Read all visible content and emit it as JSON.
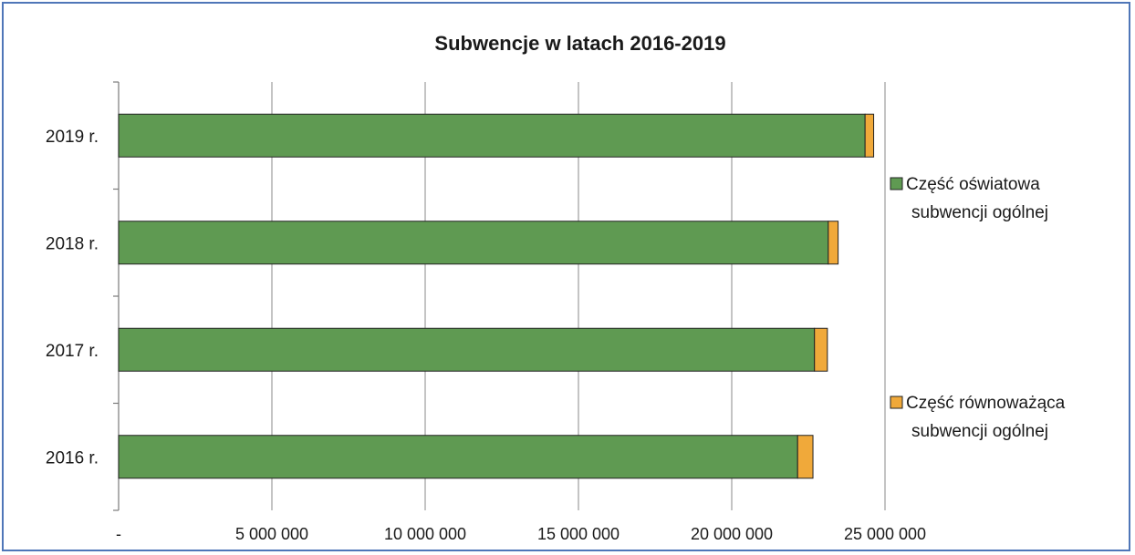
{
  "chart_data": {
    "type": "bar",
    "orientation": "horizontal",
    "stacked": true,
    "title": "Subwencje w latach 2016-2019",
    "categories": [
      "2019 r.",
      "2018 r.",
      "2017 r.",
      "2016 r."
    ],
    "series": [
      {
        "name": "Część oświatowa subwencji ogólnej",
        "legend_lines": [
          "Część oświatowa",
          "subwencji ogólnej"
        ],
        "color": "#5f9a52",
        "values": [
          24350000,
          23150000,
          22700000,
          22150000
        ]
      },
      {
        "name": "Część równoważąca subwencji ogólnej",
        "legend_lines": [
          "Część równoważąca",
          "subwencji ogólnej"
        ],
        "color": "#f0a93a",
        "values": [
          280000,
          320000,
          420000,
          500000
        ]
      }
    ],
    "xlim": [
      0,
      25000000
    ],
    "xticks": [
      0,
      5000000,
      10000000,
      15000000,
      20000000,
      25000000
    ],
    "xtick_labels": [
      "-",
      "5 000 000",
      "10 000 000",
      "15 000 000",
      "20 000 000",
      "25 000 000"
    ],
    "grid": "vertical",
    "legend_position": "right"
  }
}
